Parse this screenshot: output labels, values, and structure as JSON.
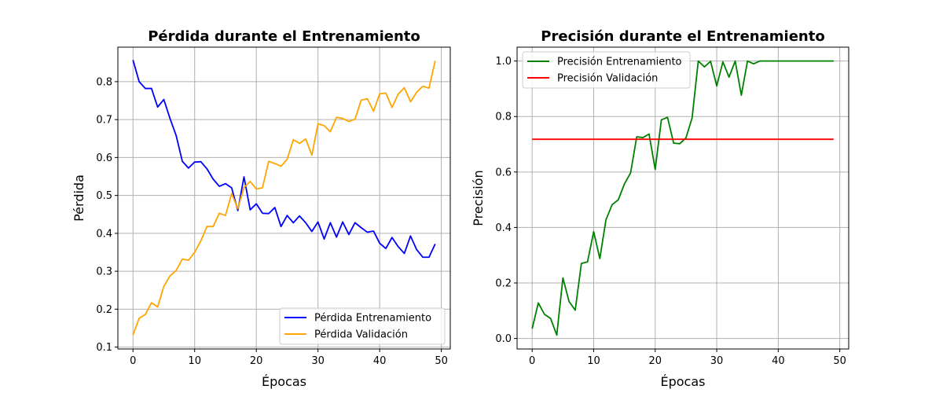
{
  "chart_data": [
    {
      "type": "line",
      "title": "Pérdida durante el Entrenamiento",
      "xlabel": "Épocas",
      "ylabel": "Pérdida",
      "xlim": [
        -2.45,
        51.45
      ],
      "ylim": [
        0.095,
        0.891
      ],
      "xticks": [
        0,
        10,
        20,
        30,
        40,
        50
      ],
      "yticks": [
        0.1,
        0.2,
        0.3,
        0.4,
        0.5,
        0.6,
        0.7,
        0.8
      ],
      "xtick_labels": [
        "0",
        "10",
        "20",
        "30",
        "40",
        "50"
      ],
      "ytick_labels": [
        "0.1",
        "0.2",
        "0.3",
        "0.4",
        "0.5",
        "0.6",
        "0.7",
        "0.8"
      ],
      "grid": true,
      "legend_position": "lower right",
      "x": [
        0,
        1,
        2,
        3,
        4,
        5,
        6,
        7,
        8,
        9,
        10,
        11,
        12,
        13,
        14,
        15,
        16,
        17,
        18,
        19,
        20,
        21,
        22,
        23,
        24,
        25,
        26,
        27,
        28,
        29,
        30,
        31,
        32,
        33,
        34,
        35,
        36,
        37,
        38,
        39,
        40,
        41,
        42,
        43,
        44,
        45,
        46,
        47,
        48,
        49
      ],
      "series": [
        {
          "name": "Pérdida Entrenamiento",
          "color": "#0000ff",
          "values": [
            0.857,
            0.8,
            0.782,
            0.782,
            0.733,
            0.753,
            0.703,
            0.658,
            0.59,
            0.572,
            0.588,
            0.589,
            0.57,
            0.543,
            0.524,
            0.531,
            0.52,
            0.46,
            0.549,
            0.462,
            0.478,
            0.453,
            0.452,
            0.468,
            0.418,
            0.447,
            0.428,
            0.446,
            0.428,
            0.405,
            0.43,
            0.385,
            0.428,
            0.39,
            0.43,
            0.397,
            0.428,
            0.415,
            0.403,
            0.406,
            0.374,
            0.36,
            0.389,
            0.365,
            0.347,
            0.393,
            0.357,
            0.337,
            0.337,
            0.372
          ]
        },
        {
          "name": "Pérdida Validación",
          "color": "#ffa500",
          "values": [
            0.132,
            0.176,
            0.186,
            0.217,
            0.206,
            0.26,
            0.288,
            0.302,
            0.332,
            0.329,
            0.35,
            0.38,
            0.418,
            0.418,
            0.453,
            0.447,
            0.505,
            0.465,
            0.521,
            0.537,
            0.517,
            0.52,
            0.59,
            0.584,
            0.577,
            0.595,
            0.647,
            0.637,
            0.649,
            0.606,
            0.689,
            0.684,
            0.668,
            0.706,
            0.703,
            0.695,
            0.701,
            0.751,
            0.755,
            0.722,
            0.768,
            0.77,
            0.732,
            0.767,
            0.784,
            0.747,
            0.772,
            0.788,
            0.783,
            0.855
          ]
        }
      ]
    },
    {
      "type": "line",
      "title": "Precisión durante el Entrenamiento",
      "xlabel": "Épocas",
      "ylabel": "Precisión",
      "xlim": [
        -2.45,
        51.45
      ],
      "ylim": [
        -0.038,
        1.05
      ],
      "xticks": [
        0,
        10,
        20,
        30,
        40,
        50
      ],
      "yticks": [
        0.0,
        0.2,
        0.4,
        0.6,
        0.8,
        1.0
      ],
      "xtick_labels": [
        "0",
        "10",
        "20",
        "30",
        "40",
        "50"
      ],
      "ytick_labels": [
        "0.0",
        "0.2",
        "0.4",
        "0.6",
        "0.8",
        "1.0"
      ],
      "grid": true,
      "legend_position": "upper left",
      "x": [
        0,
        1,
        2,
        3,
        4,
        5,
        6,
        7,
        8,
        9,
        10,
        11,
        12,
        13,
        14,
        15,
        16,
        17,
        18,
        19,
        20,
        21,
        22,
        23,
        24,
        25,
        26,
        27,
        28,
        29,
        30,
        31,
        32,
        33,
        34,
        35,
        36,
        37,
        38,
        39,
        40,
        41,
        42,
        43,
        44,
        45,
        46,
        47,
        48,
        49
      ],
      "series": [
        {
          "name": "Precisión Entrenamiento",
          "color": "#008000",
          "values": [
            0.035,
            0.128,
            0.087,
            0.072,
            0.012,
            0.218,
            0.133,
            0.102,
            0.27,
            0.276,
            0.385,
            0.288,
            0.428,
            0.482,
            0.5,
            0.557,
            0.597,
            0.727,
            0.724,
            0.737,
            0.609,
            0.788,
            0.797,
            0.704,
            0.702,
            0.723,
            0.795,
            1.0,
            0.979,
            0.999,
            0.91,
            0.997,
            0.942,
            1.0,
            0.877,
            1.0,
            0.99,
            1.0,
            1.0,
            1.0,
            1.0,
            1.0,
            1.0,
            1.0,
            1.0,
            1.0,
            1.0,
            1.0,
            1.0,
            1.0
          ]
        },
        {
          "name": "Precisión Validación",
          "color": "#ff0000",
          "values": [
            0.718,
            0.718,
            0.718,
            0.718,
            0.718,
            0.718,
            0.718,
            0.718,
            0.718,
            0.718,
            0.718,
            0.718,
            0.718,
            0.718,
            0.718,
            0.718,
            0.718,
            0.718,
            0.718,
            0.718,
            0.718,
            0.718,
            0.718,
            0.718,
            0.718,
            0.718,
            0.718,
            0.718,
            0.718,
            0.718,
            0.718,
            0.718,
            0.718,
            0.718,
            0.718,
            0.718,
            0.718,
            0.718,
            0.718,
            0.718,
            0.718,
            0.718,
            0.718,
            0.718,
            0.718,
            0.718,
            0.718,
            0.718,
            0.718,
            0.718
          ]
        }
      ]
    }
  ]
}
